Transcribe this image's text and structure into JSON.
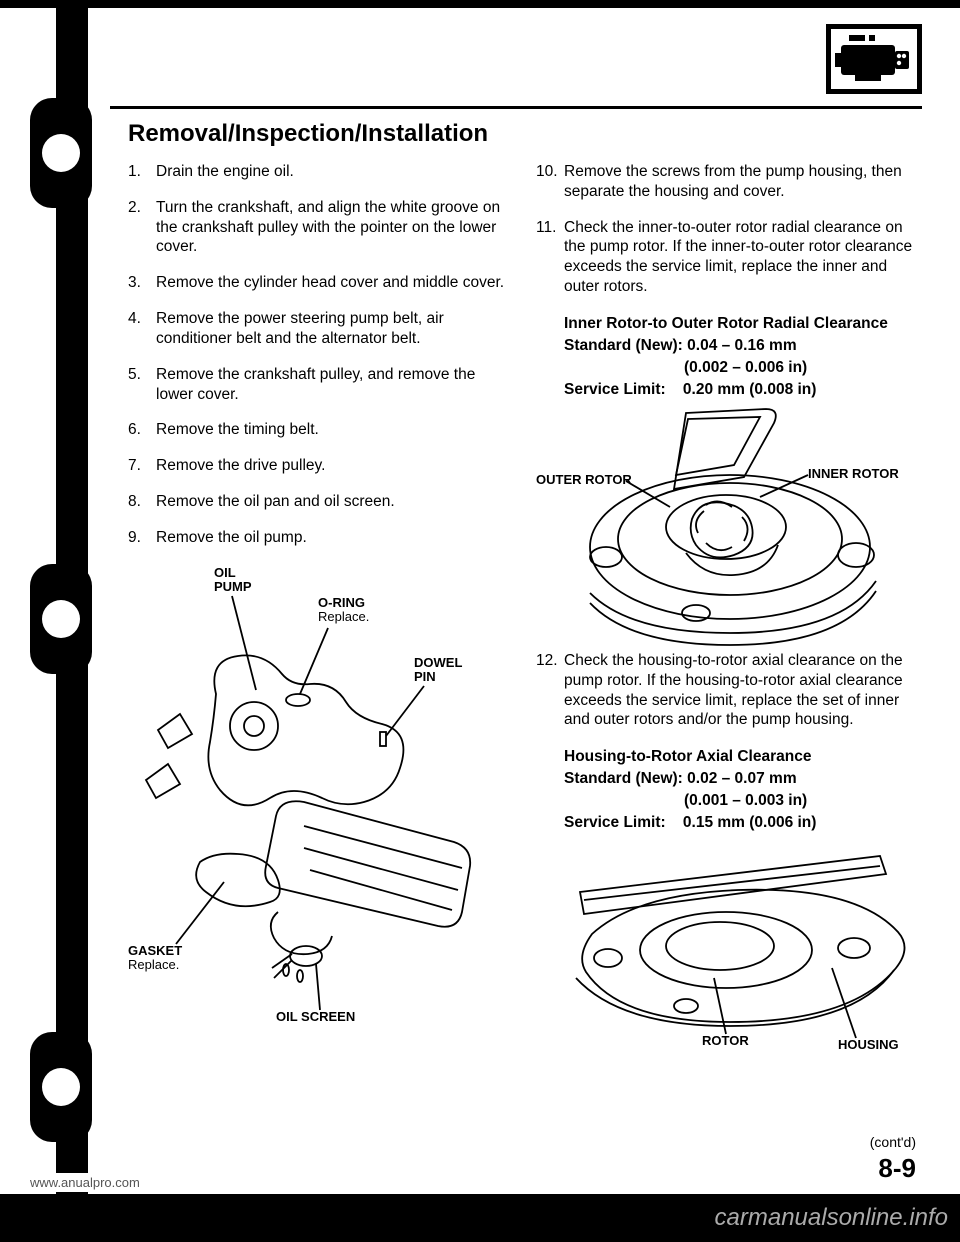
{
  "title": "Removal/Inspection/Installation",
  "left_steps": [
    {
      "n": "1.",
      "t": "Drain the engine oil."
    },
    {
      "n": "2.",
      "t": "Turn the crankshaft, and align the white groove on the crankshaft pulley with the pointer on the lower cover."
    },
    {
      "n": "3.",
      "t": "Remove the cylinder head cover and middle cover."
    },
    {
      "n": "4.",
      "t": "Remove the power steering pump belt, air conditioner belt and the alternator belt."
    },
    {
      "n": "5.",
      "t": "Remove the crankshaft pulley, and remove the lower cover."
    },
    {
      "n": "6.",
      "t": "Remove the timing belt."
    },
    {
      "n": "7.",
      "t": "Remove the drive pulley."
    },
    {
      "n": "8.",
      "t": "Remove the oil pan and oil screen."
    },
    {
      "n": "9.",
      "t": "Remove the oil pump."
    }
  ],
  "right_steps": [
    {
      "n": "10.",
      "t": "Remove the screws from the pump housing, then separate the housing and cover."
    },
    {
      "n": "11.",
      "t": "Check the inner-to-outer rotor radial clearance on the pump rotor. If the inner-to-outer rotor clearance exceeds the service limit, replace the inner and outer rotors."
    }
  ],
  "spec1": {
    "l1": "Inner Rotor-to Outer Rotor Radial Clearance",
    "l2a": "Standard (New):",
    "l2b": "0.04 – 0.16 mm",
    "l3": "(0.002 – 0.006 in)",
    "l4a": "Service Limit:",
    "l4b": "0.20 mm (0.008 in)"
  },
  "step12": {
    "n": "12.",
    "t": "Check the housing-to-rotor axial clearance on the pump rotor. If the housing-to-rotor axial clearance exceeds the service limit, replace the set of inner and outer rotors and/or the pump housing."
  },
  "spec2": {
    "l1": "Housing-to-Rotor Axial Clearance",
    "l2a": "Standard (New):",
    "l2b": "0.02 – 0.07 mm",
    "l3": "(0.001 – 0.003 in)",
    "l4a": "Service Limit:",
    "l4b": "0.15 mm (0.006 in)"
  },
  "dlabels_left": {
    "oil_pump": "OIL\nPUMP",
    "oring": "O-RING",
    "replace": "Replace.",
    "dowel": "DOWEL\nPIN",
    "gasket": "GASKET",
    "oil_screen": "OIL SCREEN"
  },
  "dlabels_r1": {
    "outer_rotor": "OUTER ROTOR",
    "inner_rotor": "INNER ROTOR"
  },
  "dlabels_r2": {
    "rotor": "ROTOR",
    "housing": "HOUSING"
  },
  "contd": "(cont'd)",
  "pagenum": "8-9",
  "footerleft": "www.anualpro.com",
  "watermark": "carmanualsonline.info"
}
